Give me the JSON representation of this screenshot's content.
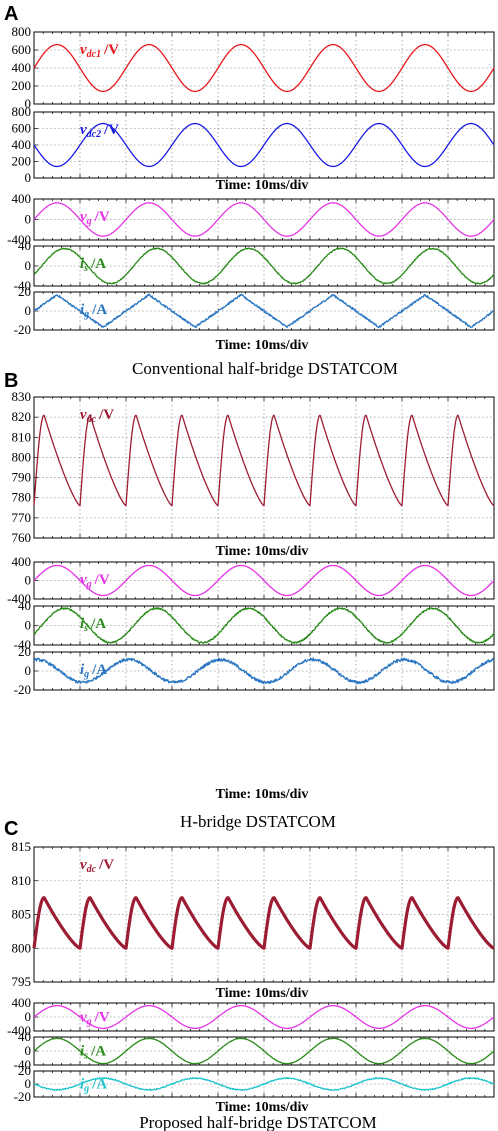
{
  "figure": {
    "sections": [
      {
        "letter": "A",
        "caption": "Conventional half-bridge DSTATCOM",
        "time_labels": [
          "Time: 10ms/div",
          "Time: 10ms/div"
        ]
      },
      {
        "letter": "B",
        "caption": "H-bridge DSTATCOM",
        "time_labels": [
          "Time: 10ms/div",
          "Time: 10ms/div"
        ]
      },
      {
        "letter": "C",
        "caption": "Proposed half-bridge DSTATCOM",
        "time_labels": [
          "Time: 10ms/div",
          "Time: 10ms/div"
        ]
      }
    ]
  },
  "colors": {
    "red": "#e8161b",
    "blue": "#1a1ae6",
    "magenta": "#e633e6",
    "green": "#2a8a1a",
    "steelblue": "#2a76c2",
    "darkred": "#9c1c33",
    "cyan": "#22c4cf",
    "grid": "#9a9a9a"
  },
  "chart_data": [
    {
      "type": "line",
      "panel": "A",
      "label": "v_dc1 /V",
      "label_base": "v",
      "label_sub": "dc1",
      "label_unit": "/V",
      "ylim": [
        0,
        800
      ],
      "yticks": [
        0,
        200,
        400,
        600,
        800
      ],
      "ytick_labels": [
        "0",
        "200",
        "400",
        "600",
        "800"
      ],
      "xlim": [
        0,
        100
      ],
      "x_unit": "ms",
      "grid": true,
      "color": "red",
      "waveform": "sine",
      "offset": 400,
      "amplitude": 260,
      "period_ms": 20,
      "phase_deg": 0
    },
    {
      "type": "line",
      "panel": "A",
      "label": "v_dc2 /V",
      "label_base": "v",
      "label_sub": "dc2",
      "label_unit": "/V",
      "ylim": [
        0,
        800
      ],
      "yticks": [
        0,
        200,
        400,
        600,
        800
      ],
      "ytick_labels": [
        "0",
        "200",
        "400",
        "600",
        "800"
      ],
      "xlim": [
        0,
        100
      ],
      "x_unit": "ms",
      "grid": true,
      "color": "blue",
      "waveform": "sine",
      "offset": 400,
      "amplitude": 260,
      "period_ms": 20,
      "phase_deg": 180
    },
    {
      "type": "line",
      "panel": "A",
      "label": "v_g /V",
      "label_base": "v",
      "label_sub": "g",
      "label_unit": "/V",
      "ylim": [
        -400,
        400
      ],
      "yticks": [
        -400,
        0,
        400
      ],
      "ytick_labels": [
        "-400",
        "0",
        "400"
      ],
      "xlim": [
        0,
        100
      ],
      "x_unit": "ms",
      "grid": true,
      "color": "magenta",
      "waveform": "sine",
      "offset": 0,
      "amplitude": 325,
      "period_ms": 20,
      "phase_deg": 0
    },
    {
      "type": "line",
      "panel": "A",
      "label": "i_s /A",
      "label_base": "i",
      "label_sub": "s",
      "label_unit": "/A",
      "ylim": [
        -40,
        40
      ],
      "yticks": [
        -40,
        0,
        40
      ],
      "ytick_labels": [
        "-40",
        "0",
        "40"
      ],
      "xlim": [
        0,
        100
      ],
      "x_unit": "ms",
      "grid": true,
      "color": "green",
      "waveform": "sine",
      "offset": 0,
      "amplitude": 35,
      "period_ms": 20,
      "phase_deg": -30,
      "noise": 2
    },
    {
      "type": "line",
      "panel": "A",
      "label": "i_g /A",
      "label_base": "i",
      "label_sub": "g",
      "label_unit": "/A",
      "ylim": [
        -20,
        20
      ],
      "yticks": [
        -20,
        0,
        20
      ],
      "ytick_labels": [
        "-20",
        "0",
        "20"
      ],
      "xlim": [
        0,
        100
      ],
      "x_unit": "ms",
      "grid": true,
      "color": "steelblue",
      "waveform": "triangle",
      "offset": 0,
      "amplitude": 17,
      "period_ms": 20,
      "phase_deg": 90,
      "noise": 2
    },
    {
      "type": "line",
      "panel": "B",
      "label": "v_dc /V",
      "label_base": "v",
      "label_sub": "dc",
      "label_unit": "/V",
      "ylim": [
        760,
        830
      ],
      "yticks": [
        760,
        770,
        780,
        790,
        800,
        810,
        820,
        830
      ],
      "ytick_labels": [
        "760",
        "770",
        "780",
        "790",
        "800",
        "810",
        "820",
        "830"
      ],
      "xlim": [
        0,
        100
      ],
      "x_unit": "ms",
      "grid": true,
      "color": "darkred",
      "waveform": "ripple",
      "min": 776,
      "max": 821,
      "period_ms": 10,
      "phase_deg": 0
    },
    {
      "type": "line",
      "panel": "B",
      "label": "v_g /V",
      "label_base": "v",
      "label_sub": "g",
      "label_unit": "/V",
      "ylim": [
        -400,
        400
      ],
      "yticks": [
        -400,
        0,
        400
      ],
      "ytick_labels": [
        "-400",
        "0",
        "400"
      ],
      "xlim": [
        0,
        100
      ],
      "x_unit": "ms",
      "grid": true,
      "color": "magenta",
      "waveform": "sine",
      "offset": 0,
      "amplitude": 325,
      "period_ms": 20,
      "phase_deg": 0
    },
    {
      "type": "line",
      "panel": "B",
      "label": "i_s /A",
      "label_base": "i",
      "label_sub": "s",
      "label_unit": "/A",
      "ylim": [
        -40,
        40
      ],
      "yticks": [
        -40,
        0,
        40
      ],
      "ytick_labels": [
        "-40",
        "0",
        "40"
      ],
      "xlim": [
        0,
        100
      ],
      "x_unit": "ms",
      "grid": true,
      "color": "green",
      "waveform": "sine",
      "offset": 0,
      "amplitude": 35,
      "period_ms": 20,
      "phase_deg": -30,
      "noise": 3
    },
    {
      "type": "line",
      "panel": "B",
      "label": "i_g /A",
      "label_base": "i",
      "label_sub": "g",
      "label_unit": "/A",
      "ylim": [
        -20,
        20
      ],
      "yticks": [
        -20,
        0,
        20
      ],
      "ytick_labels": [
        "-20",
        "0",
        "20"
      ],
      "xlim": [
        0,
        100
      ],
      "x_unit": "ms",
      "grid": true,
      "color": "steelblue",
      "waveform": "sine",
      "offset": 0,
      "amplitude": 12,
      "period_ms": 20,
      "phase_deg": 80,
      "noise": 3
    },
    {
      "type": "line",
      "panel": "C",
      "label": "v_dc /V",
      "label_base": "v",
      "label_sub": "dc",
      "label_unit": "/V",
      "ylim": [
        795,
        815
      ],
      "yticks": [
        795,
        800,
        805,
        810,
        815
      ],
      "ytick_labels": [
        "795",
        "800",
        "805",
        "810",
        "815"
      ],
      "xlim": [
        0,
        100
      ],
      "x_unit": "ms",
      "grid": true,
      "color": "darkred",
      "waveform": "ripple_thick",
      "min": 800,
      "max": 807.5,
      "period_ms": 10,
      "phase_deg": 0,
      "band": 1
    },
    {
      "type": "line",
      "panel": "C",
      "label": "v_g /V",
      "label_base": "v",
      "label_sub": "g",
      "label_unit": "/V",
      "ylim": [
        -400,
        400
      ],
      "yticks": [
        -400,
        0,
        400
      ],
      "ytick_labels": [
        "-400",
        "0",
        "400"
      ],
      "xlim": [
        0,
        100
      ],
      "x_unit": "ms",
      "grid": true,
      "color": "magenta",
      "waveform": "sine",
      "offset": 0,
      "amplitude": 325,
      "period_ms": 20,
      "phase_deg": 0
    },
    {
      "type": "line",
      "panel": "C",
      "label": "i_s /A",
      "label_base": "i",
      "label_sub": "s",
      "label_unit": "/A",
      "ylim": [
        -40,
        40
      ],
      "yticks": [
        -40,
        0,
        40
      ],
      "ytick_labels": [
        "-40",
        "0",
        "40"
      ],
      "xlim": [
        0,
        100
      ],
      "x_unit": "ms",
      "grid": true,
      "color": "green",
      "waveform": "sine",
      "offset": 0,
      "amplitude": 36,
      "period_ms": 20,
      "phase_deg": 0,
      "noise": 1
    },
    {
      "type": "line",
      "panel": "C",
      "label": "i_g /A",
      "label_base": "i",
      "label_sub": "g",
      "label_unit": "/A",
      "ylim": [
        -20,
        20
      ],
      "yticks": [
        -20,
        0,
        20
      ],
      "ytick_labels": [
        "-20",
        "0",
        "20"
      ],
      "xlim": [
        0,
        100
      ],
      "x_unit": "ms",
      "grid": true,
      "color": "cyan",
      "waveform": "sine",
      "offset": 0,
      "amplitude": 9,
      "period_ms": 20,
      "phase_deg": 180,
      "noise": 1.5
    }
  ]
}
